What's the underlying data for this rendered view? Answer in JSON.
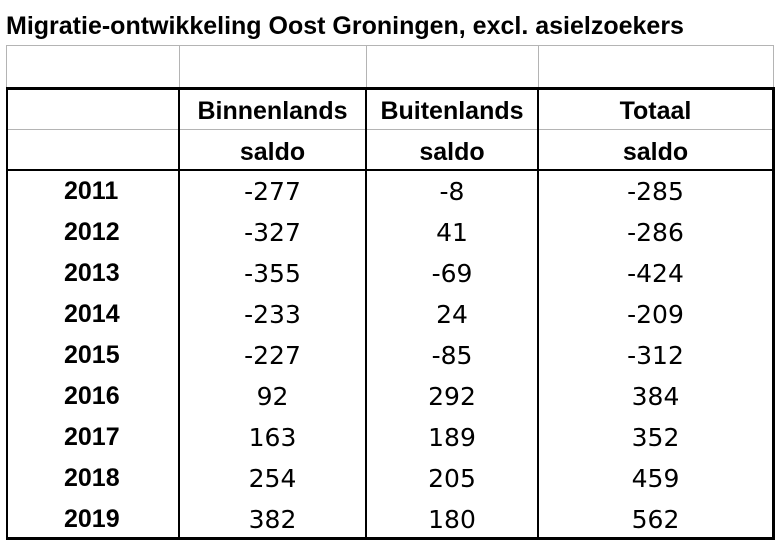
{
  "title": "Migratie-ontwikkeling Oost Groningen, excl. asielzoekers",
  "headers": {
    "col2": [
      "Binnenlands",
      "saldo"
    ],
    "col3": [
      "Buitenlands",
      "saldo"
    ],
    "col4": [
      "Totaal",
      "saldo"
    ]
  },
  "rows": [
    {
      "year": "2011",
      "binnen": "-277",
      "buiten": "-8",
      "totaal": "-285"
    },
    {
      "year": "2012",
      "binnen": "-327",
      "buiten": "41",
      "totaal": "-286"
    },
    {
      "year": "2013",
      "binnen": "-355",
      "buiten": "-69",
      "totaal": "-424"
    },
    {
      "year": "2014",
      "binnen": "-233",
      "buiten": "24",
      "totaal": "-209"
    },
    {
      "year": "2015",
      "binnen": "-227",
      "buiten": "-85",
      "totaal": "-312"
    },
    {
      "year": "2016",
      "binnen": "92",
      "buiten": "292",
      "totaal": "384"
    },
    {
      "year": "2017",
      "binnen": "163",
      "buiten": "189",
      "totaal": "352"
    },
    {
      "year": "2018",
      "binnen": "254",
      "buiten": "205",
      "totaal": "459"
    },
    {
      "year": "2019",
      "binnen": "382",
      "buiten": "180",
      "totaal": "562"
    }
  ]
}
